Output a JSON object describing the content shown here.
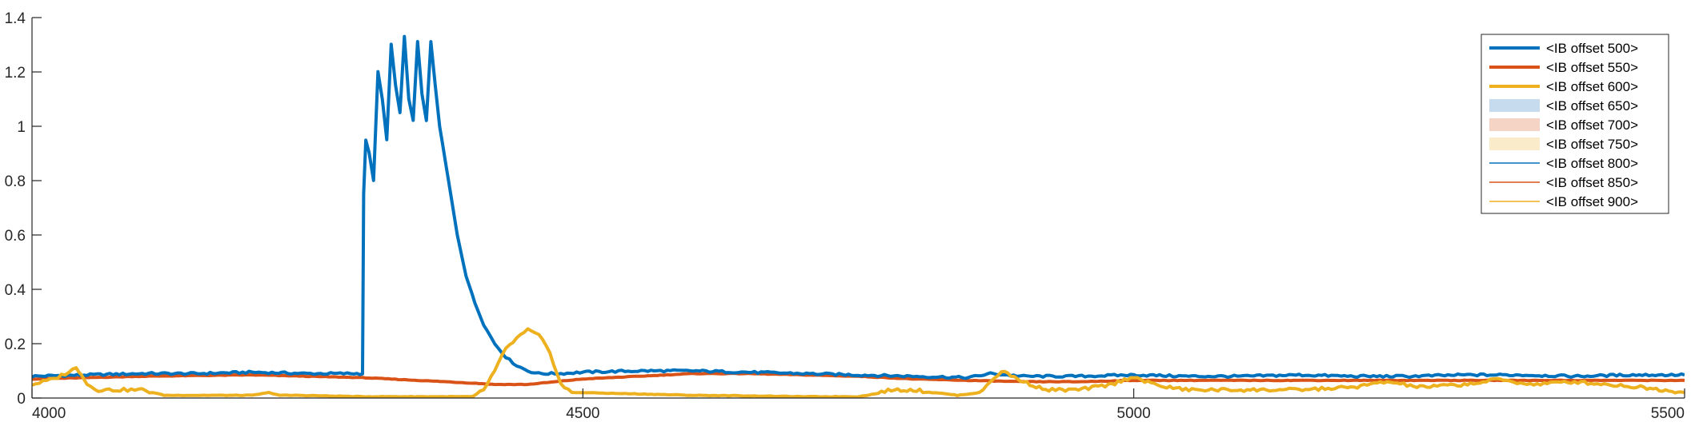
{
  "chart_data": {
    "type": "line",
    "title": "",
    "xlabel": "",
    "ylabel": "",
    "xlim": [
      4000,
      5500
    ],
    "ylim": [
      0,
      1.4
    ],
    "xticks": [
      {
        "value": 4000,
        "label": "4000"
      },
      {
        "value": 4500,
        "label": "4500"
      },
      {
        "value": 5000,
        "label": "5000"
      },
      {
        "value": 5500,
        "label": "5500"
      }
    ],
    "yticks": [
      {
        "value": 0,
        "label": "0"
      },
      {
        "value": 0.2,
        "label": "0.2"
      },
      {
        "value": 0.4,
        "label": "0.4"
      },
      {
        "value": 0.6,
        "label": "0.6"
      },
      {
        "value": 0.8,
        "label": "0.8"
      },
      {
        "value": 1.0,
        "label": "1"
      },
      {
        "value": 1.2,
        "label": "1.2"
      },
      {
        "value": 1.4,
        "label": "1.4"
      }
    ],
    "grid": false,
    "legend_position": "top-right",
    "legend": [
      {
        "label": "<IB offset 500>",
        "style": "thick-line",
        "color": "#0072BD"
      },
      {
        "label": "<IB offset 550>",
        "style": "thick-line",
        "color": "#D95319"
      },
      {
        "label": "<IB offset 600>",
        "style": "thick-line",
        "color": "#EDB120"
      },
      {
        "label": "<IB offset 650>",
        "style": "band",
        "color": "#C6DCEE"
      },
      {
        "label": "<IB offset 700>",
        "style": "band",
        "color": "#F6D4C5"
      },
      {
        "label": "<IB offset 750>",
        "style": "band",
        "color": "#FAEBCB"
      },
      {
        "label": "<IB offset 800>",
        "style": "thin-line",
        "color": "#0072BD"
      },
      {
        "label": "<IB offset 850>",
        "style": "thin-line",
        "color": "#D95319"
      },
      {
        "label": "<IB offset 900>",
        "style": "thin-line",
        "color": "#EDB120"
      }
    ],
    "series": [
      {
        "name": "<IB offset 500>",
        "color": "#0072BD",
        "width": 4,
        "x": [
          4000,
          4050,
          4100,
          4150,
          4200,
          4250,
          4295,
          4300,
          4301,
          4303,
          4306,
          4310,
          4314,
          4318,
          4322,
          4326,
          4330,
          4334,
          4338,
          4342,
          4346,
          4350,
          4354,
          4358,
          4362,
          4366,
          4370,
          4378,
          4386,
          4394,
          4402,
          4410,
          4420,
          4430,
          4440,
          4450,
          4460,
          4480,
          4500,
          4550,
          4600,
          4650,
          4700,
          4750,
          4800,
          4850,
          4870,
          4900,
          4950,
          5000,
          5050,
          5100,
          5150,
          5200,
          5250,
          5300,
          5350,
          5400,
          5450,
          5500
        ],
        "y": [
          0.08,
          0.085,
          0.09,
          0.09,
          0.095,
          0.09,
          0.09,
          0.09,
          0.75,
          0.95,
          0.9,
          0.8,
          1.2,
          1.1,
          0.95,
          1.3,
          1.15,
          1.05,
          1.33,
          1.1,
          1.02,
          1.31,
          1.12,
          1.02,
          1.31,
          1.15,
          1.0,
          0.8,
          0.6,
          0.45,
          0.35,
          0.27,
          0.2,
          0.15,
          0.12,
          0.1,
          0.09,
          0.09,
          0.095,
          0.1,
          0.1,
          0.095,
          0.09,
          0.085,
          0.08,
          0.075,
          0.09,
          0.08,
          0.08,
          0.085,
          0.08,
          0.08,
          0.085,
          0.08,
          0.08,
          0.085,
          0.085,
          0.08,
          0.085,
          0.085
        ]
      },
      {
        "name": "<IB offset 550>",
        "color": "#D95319",
        "width": 4,
        "x": [
          4000,
          4100,
          4200,
          4300,
          4350,
          4400,
          4420,
          4450,
          4500,
          4550,
          4600,
          4650,
          4700,
          4750,
          4800,
          4850,
          4900,
          4950,
          5000,
          5100,
          5200,
          5300,
          5400,
          5500
        ],
        "y": [
          0.07,
          0.08,
          0.085,
          0.075,
          0.065,
          0.055,
          0.05,
          0.05,
          0.07,
          0.08,
          0.09,
          0.09,
          0.085,
          0.08,
          0.07,
          0.065,
          0.06,
          0.06,
          0.065,
          0.065,
          0.065,
          0.065,
          0.065,
          0.065
        ]
      },
      {
        "name": "<IB offset 600>",
        "color": "#EDB120",
        "width": 4,
        "x": [
          4000,
          4010,
          4020,
          4030,
          4040,
          4045,
          4050,
          4060,
          4070,
          4080,
          4090,
          4100,
          4110,
          4120,
          4130,
          4150,
          4200,
          4215,
          4225,
          4240,
          4300,
          4350,
          4400,
          4410,
          4420,
          4430,
          4440,
          4450,
          4460,
          4470,
          4480,
          4490,
          4500,
          4550,
          4600,
          4650,
          4700,
          4750,
          4765,
          4780,
          4800,
          4820,
          4840,
          4860,
          4870,
          4880,
          4900,
          4920,
          4950,
          4980,
          5000,
          5010,
          5030,
          5050,
          5100,
          5150,
          5200,
          5230,
          5260,
          5300,
          5320,
          5330,
          5360,
          5400,
          5430,
          5460,
          5480,
          5500
        ],
        "y": [
          0.05,
          0.06,
          0.07,
          0.09,
          0.11,
          0.09,
          0.05,
          0.03,
          0.03,
          0.03,
          0.03,
          0.03,
          0.02,
          0.01,
          0.01,
          0.01,
          0.01,
          0.02,
          0.01,
          0.01,
          0.005,
          0.005,
          0.005,
          0.03,
          0.1,
          0.18,
          0.22,
          0.25,
          0.23,
          0.17,
          0.05,
          0.02,
          0.02,
          0.015,
          0.01,
          0.008,
          0.005,
          0.005,
          0.015,
          0.03,
          0.03,
          0.02,
          0.01,
          0.02,
          0.06,
          0.1,
          0.06,
          0.03,
          0.03,
          0.05,
          0.08,
          0.06,
          0.04,
          0.03,
          0.03,
          0.03,
          0.04,
          0.06,
          0.04,
          0.05,
          0.06,
          0.07,
          0.05,
          0.06,
          0.05,
          0.04,
          0.03,
          0.02
        ]
      }
    ]
  }
}
